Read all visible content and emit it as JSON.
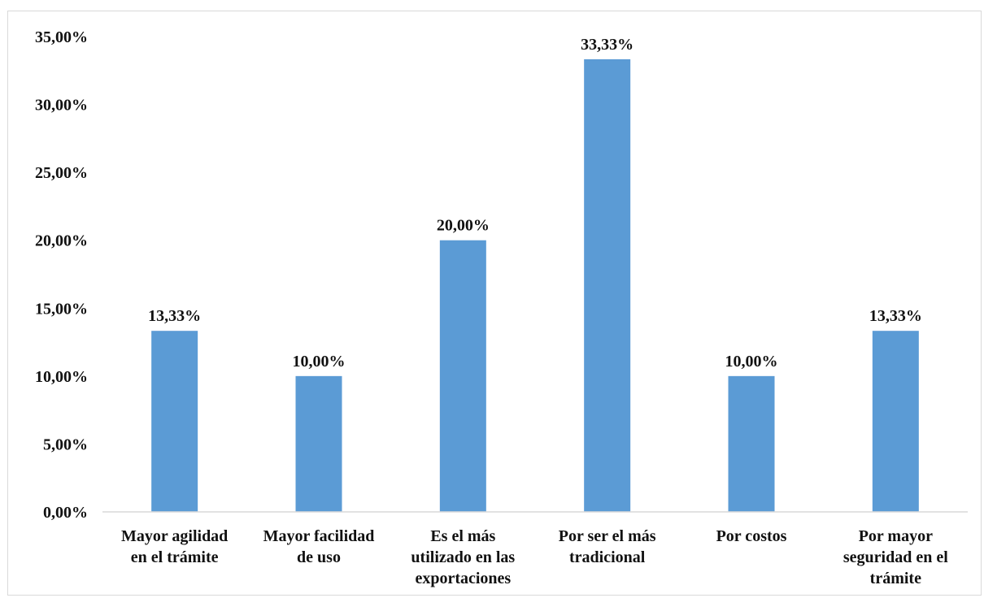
{
  "chart_data": {
    "type": "bar",
    "categories": [
      [
        "Mayor agilidad",
        "en el trámite"
      ],
      [
        "Mayor facilidad",
        "de uso"
      ],
      [
        "Es el más",
        "utilizado en las",
        "exportaciones"
      ],
      [
        "Por ser el más",
        "tradicional"
      ],
      [
        "Por costos"
      ],
      [
        "Por mayor",
        "seguridad en el",
        "trámite"
      ]
    ],
    "values": [
      13.33,
      10.0,
      20.0,
      33.33,
      10.0,
      13.33
    ],
    "data_labels": [
      "13,33%",
      "10,00%",
      "20,00%",
      "33,33%",
      "10,00%",
      "13,33%"
    ],
    "ylim": [
      0,
      35
    ],
    "yticks": [
      0,
      5,
      10,
      15,
      20,
      25,
      30,
      35
    ],
    "ytick_labels": [
      "0,00%",
      "5,00%",
      "10,00%",
      "15,00%",
      "20,00%",
      "25,00%",
      "30,00%",
      "35,00%"
    ],
    "grid": false,
    "legend": "none",
    "bar_color": "#5b9bd5",
    "axis_color": "#d9d9d9",
    "title": "",
    "xlabel": "",
    "ylabel": ""
  }
}
